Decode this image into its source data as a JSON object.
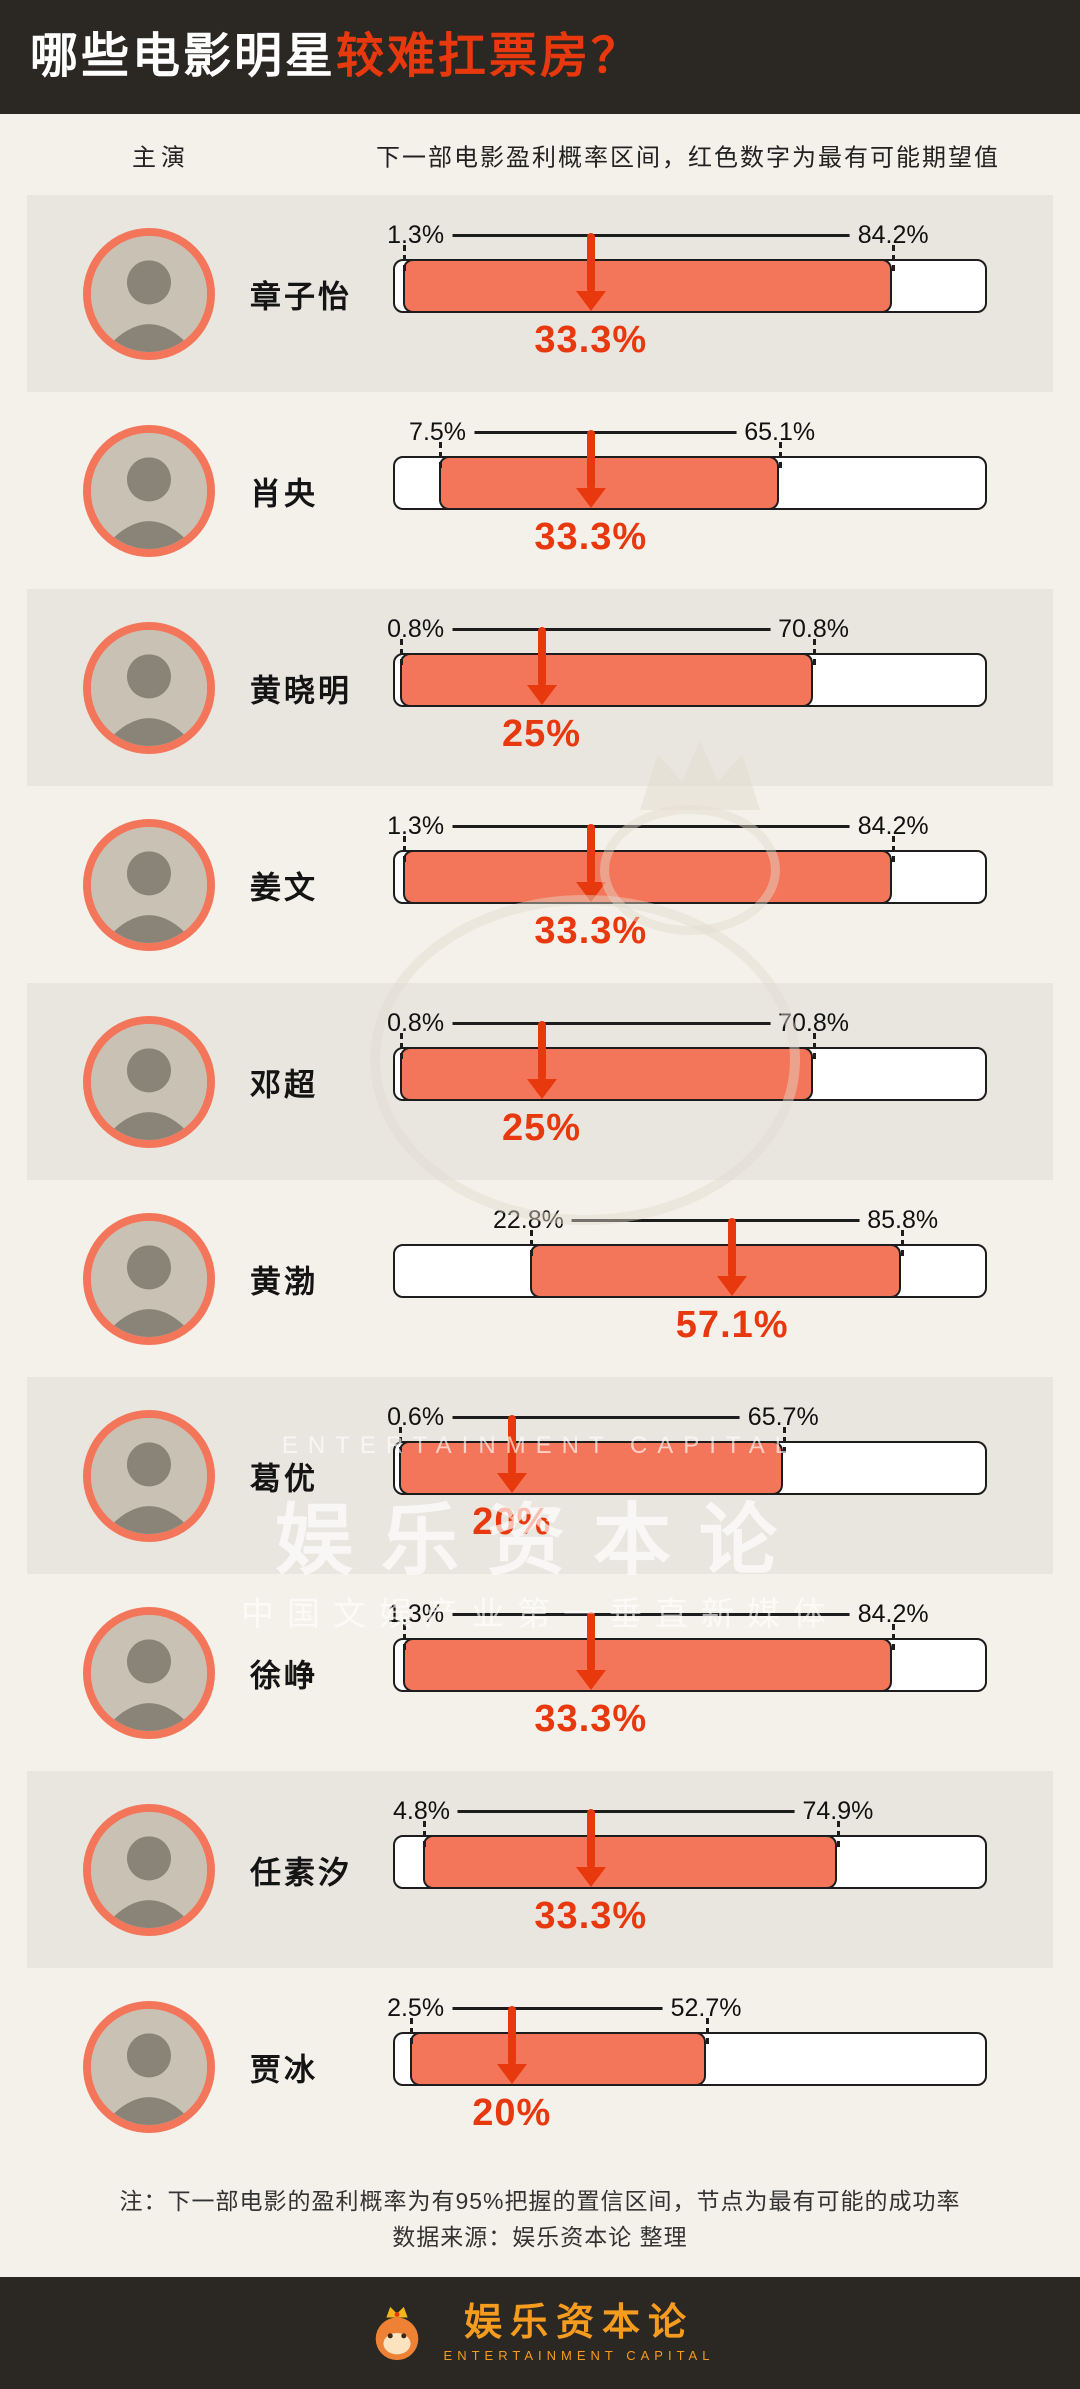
{
  "title": {
    "prefix": "哪些电影明星",
    "highlight": "较难扛票房？"
  },
  "columns": {
    "star": "主演",
    "desc": "下一部电影盈利概率区间，红色数字为最有可能期望值"
  },
  "chart_data": {
    "type": "bar",
    "orientation": "horizontal-range",
    "axis_range_percent": [
      0,
      100
    ],
    "value_unit": "%",
    "legend": "红色数字为最有可能期望值",
    "rows": [
      {
        "name": "章子怡",
        "low": 1.3,
        "high": 84.2,
        "expected": 33.3
      },
      {
        "name": "肖央",
        "low": 7.5,
        "high": 65.1,
        "expected": 33.3
      },
      {
        "name": "黄晓明",
        "low": 0.8,
        "high": 70.8,
        "expected": 25
      },
      {
        "name": "姜文",
        "low": 1.3,
        "high": 84.2,
        "expected": 33.3
      },
      {
        "name": "邓超",
        "low": 0.8,
        "high": 70.8,
        "expected": 25
      },
      {
        "name": "黄渤",
        "low": 22.8,
        "high": 85.8,
        "expected": 57.1
      },
      {
        "name": "葛优",
        "low": 0.6,
        "high": 65.7,
        "expected": 20
      },
      {
        "name": "徐峥",
        "low": 1.3,
        "high": 84.2,
        "expected": 33.3
      },
      {
        "name": "任素汐",
        "low": 4.8,
        "high": 74.9,
        "expected": 33.3
      },
      {
        "name": "贾冰",
        "low": 2.5,
        "high": 52.7,
        "expected": 20
      }
    ]
  },
  "notes": {
    "line1": "注：下一部电影的盈利概率为有95%把握的置信区间，节点为最有可能的成功率",
    "line2": "数据来源：娱乐资本论 整理"
  },
  "watermark": {
    "en": "ENTERTAINMENT CAPITAL",
    "brand": "娱乐资本论",
    "tagline": "中国文娱产业第一垂直新媒体"
  },
  "footer": {
    "brand": "娱乐资本论",
    "brand_en": "ENTERTAINMENT CAPITAL"
  },
  "colors": {
    "accent_red": "#e8380d",
    "bar_fill": "#f4765a",
    "bg": "#f4f1ea",
    "row_alt": "#e9e6e0",
    "dark": "#2b2723",
    "footer_orange": "#f59b1e"
  }
}
